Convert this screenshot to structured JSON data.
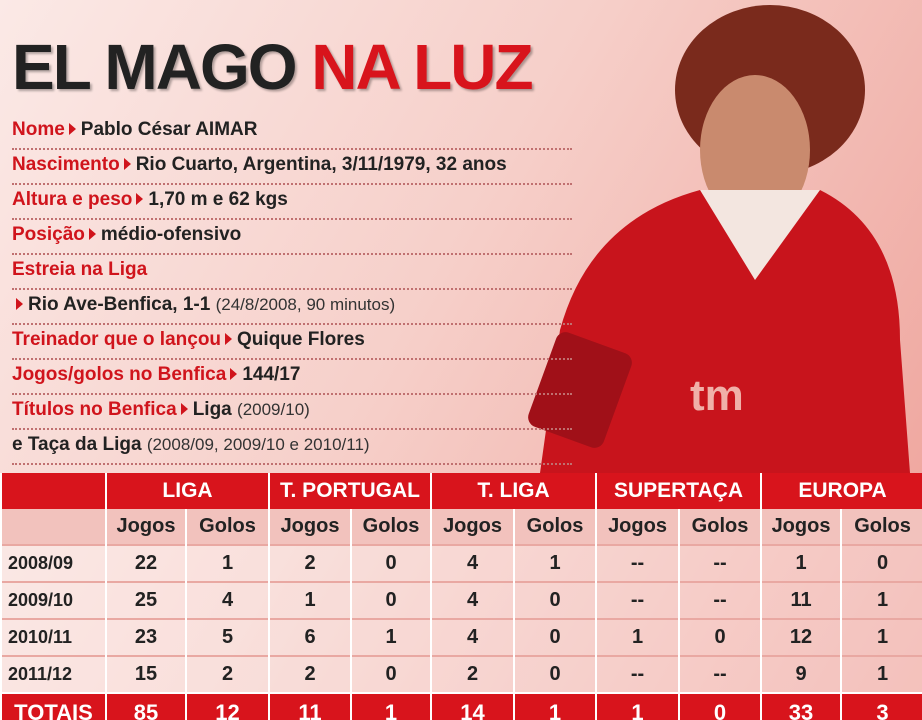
{
  "header": {
    "title_dark": "EL MAGO",
    "title_red": "NA LUZ"
  },
  "info": [
    {
      "label": "Nome",
      "value": "Pablo César AIMAR"
    },
    {
      "label": "Nascimento",
      "value": "Rio Cuarto, Argentina, 3/11/1979, 32 anos"
    },
    {
      "label": "Altura e peso",
      "value": "1,70 m e 62 kgs"
    },
    {
      "label": "Posição",
      "value": "médio-ofensivo"
    },
    {
      "label": "Estreia na Liga",
      "next_value": "Rio Ave-Benfica, 1-1",
      "next_note": "(24/8/2008, 90 minutos)"
    },
    {
      "label": "Treinador que o lançou",
      "value": "Quique Flores"
    },
    {
      "label": "Jogos/golos no Benfica",
      "value": "144/17"
    },
    {
      "label": "Títulos no Benfica",
      "value": "Liga",
      "note": "(2009/10)",
      "next_value": "e Taça da Liga",
      "next_note": "(2008/09, 2009/10 e 2010/11)"
    }
  ],
  "table": {
    "groups": [
      {
        "name": "LIGA",
        "sub": [
          "Jogos",
          "Golos"
        ]
      },
      {
        "name": "T. PORTUGAL",
        "sub": [
          "Jogos",
          "Golos"
        ]
      },
      {
        "name": "T. LIGA",
        "sub": [
          "Jogos",
          "Golos"
        ]
      },
      {
        "name": "SUPERTAÇA",
        "sub": [
          "Jogos",
          "Golos"
        ]
      },
      {
        "name": "EUROPA",
        "sub": [
          "Jogos",
          "Golos"
        ]
      }
    ],
    "rows": [
      {
        "season": "2008/09",
        "cells": [
          22,
          1,
          2,
          0,
          4,
          1,
          "--",
          "--",
          1,
          0
        ]
      },
      {
        "season": "2009/10",
        "cells": [
          25,
          4,
          1,
          0,
          4,
          0,
          "--",
          "--",
          11,
          1
        ]
      },
      {
        "season": "2010/11",
        "cells": [
          23,
          5,
          6,
          1,
          4,
          0,
          1,
          0,
          12,
          1
        ]
      },
      {
        "season": "2011/12",
        "cells": [
          15,
          2,
          2,
          0,
          2,
          0,
          "--",
          "--",
          9,
          1
        ]
      }
    ],
    "totals": {
      "label": "TOTAIS",
      "cells": [
        85,
        12,
        11,
        1,
        14,
        1,
        1,
        0,
        33,
        3
      ]
    }
  }
}
